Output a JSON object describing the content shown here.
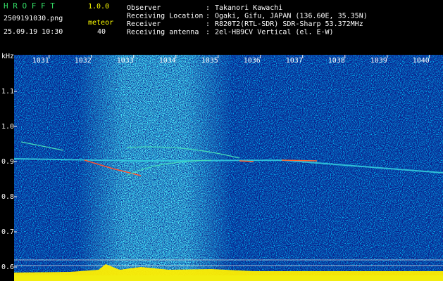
{
  "header": {
    "app_name": "H R O F F T",
    "version": "1.0.0",
    "file_name": "2509191030.png",
    "timestamp": "25.09.19 10:30",
    "count_label": "meteor",
    "count": "40",
    "separator": ":",
    "fields": [
      {
        "label": "Observer",
        "value": "Takanori Kawachi"
      },
      {
        "label": "Receiving Location",
        "value": "Ogaki, Gifu, JAPAN (136.60E, 35.35N)"
      },
      {
        "label": "Receiver",
        "value": "R820T2(RTL-SDR) SDR-Sharp 53.372MHz"
      },
      {
        "label": "Receiving antenna",
        "value": "2el-HB9CV Vertical (el. E-W)"
      }
    ]
  },
  "chart_data": {
    "type": "spectrogram",
    "y_label": "kHz",
    "xlim": [
      1030.17,
      1040.32
    ],
    "xticks": [
      1031,
      1032,
      1033,
      1034,
      1035,
      1036,
      1037,
      1038,
      1039,
      1040
    ],
    "ylim": [
      0.56,
      1.204
    ],
    "yticks": [
      {
        "value": 1.1,
        "label": "1.1"
      },
      {
        "value": 1.0,
        "label": "1.0"
      },
      {
        "value": 0.9,
        "label": "0.9"
      },
      {
        "value": 0.8,
        "label": "0.8"
      },
      {
        "value": 0.7,
        "label": "0.7"
      },
      {
        "value": 0.6,
        "label": "0.6"
      }
    ]
  }
}
